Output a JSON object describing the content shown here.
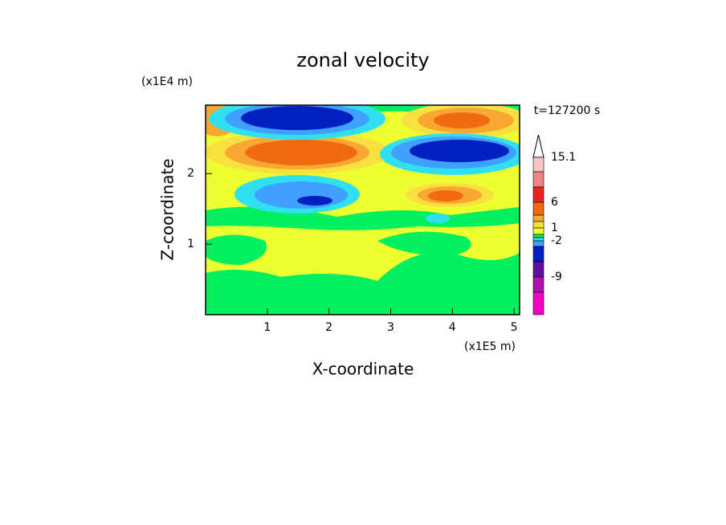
{
  "chart_data": {
    "type": "contour",
    "title": "zonal velocity",
    "x_label": "X-coordinate",
    "y_label": "Z-coordinate",
    "x_scale_label": "(x1E5 m)",
    "y_scale_label": "(x1E4 m)",
    "time_label": "t=127200 s",
    "xlim": [
      0,
      5.09
    ],
    "ylim": [
      0,
      2.97
    ],
    "xticks": [
      1,
      2,
      3,
      4,
      5
    ],
    "yticks": [
      1,
      2
    ],
    "colorbar": {
      "colors": [
        "#f8c4c4",
        "#f08484",
        "#e82420",
        "#f06a10",
        "#f8a830",
        "#f8e040",
        "#eeff30",
        "#00f060",
        "#30e0f0",
        "#40a0ff",
        "#0020c0",
        "#6010a0",
        "#b010b0",
        "#f000c0"
      ],
      "ticks": [
        15.1,
        6,
        1,
        -2,
        -9
      ]
    }
  }
}
